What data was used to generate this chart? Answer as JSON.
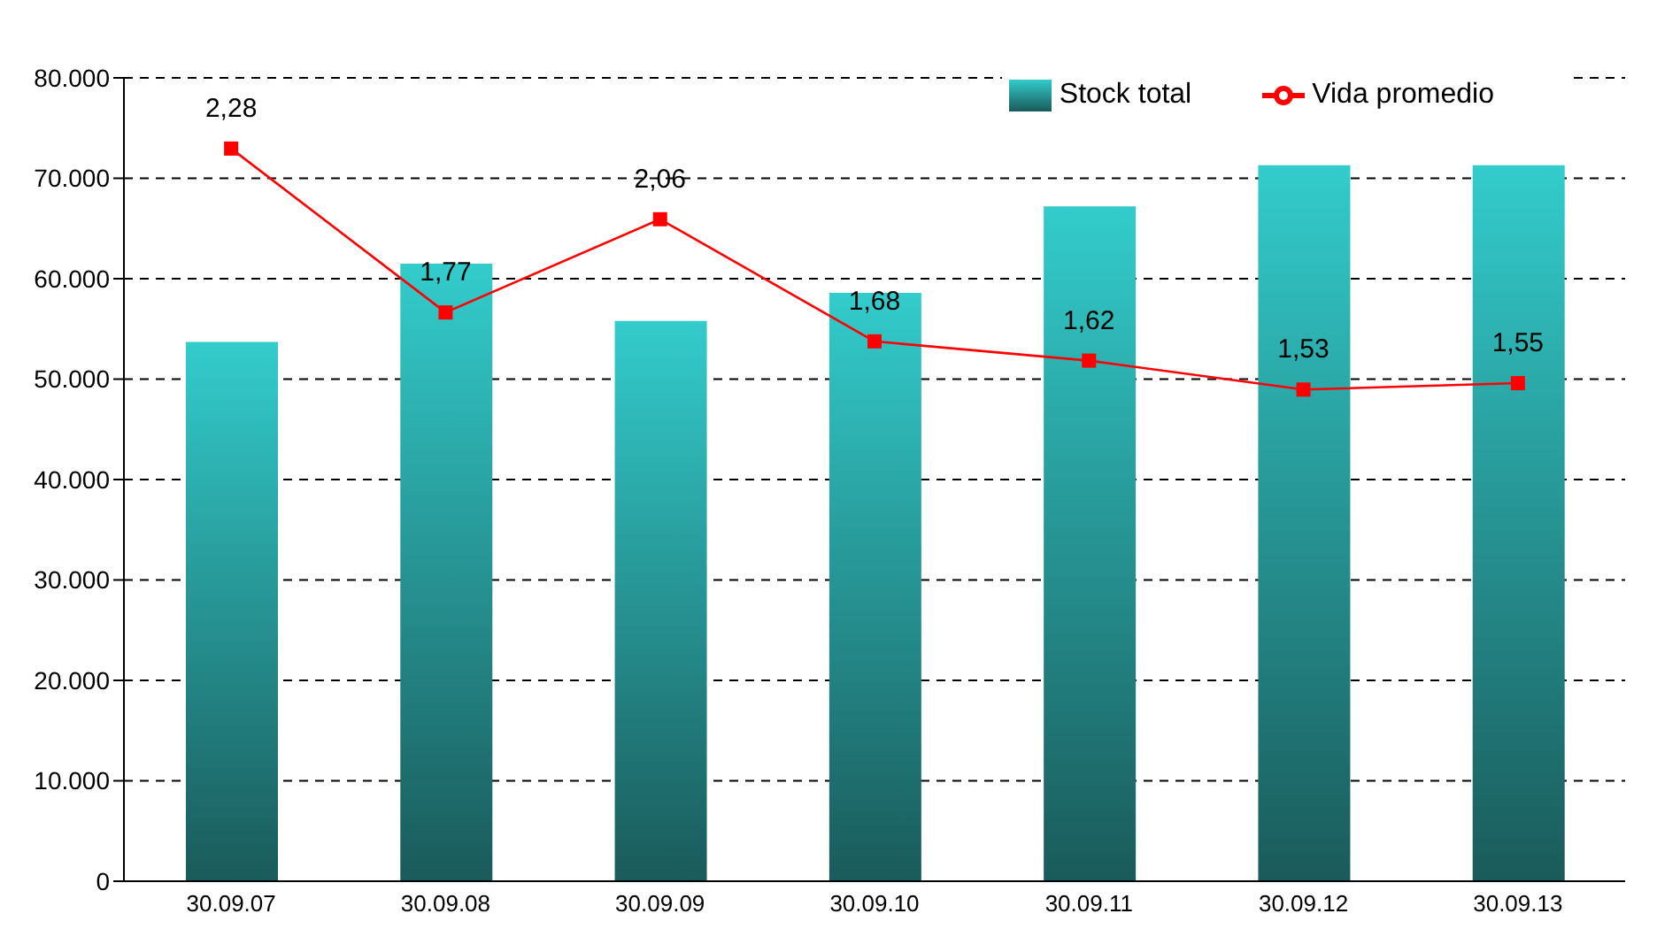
{
  "chart_data": {
    "type": "bar",
    "categories": [
      "30.09.07",
      "30.09.08",
      "30.09.09",
      "30.09.10",
      "30.09.11",
      "30.09.12",
      "30.09.13"
    ],
    "series": [
      {
        "name": "Stock total",
        "color": "#33cccc",
        "values": [
          53700,
          61500,
          55800,
          58600,
          67200,
          71300,
          71300
        ]
      },
      {
        "name": "Vida promedio",
        "type": "line",
        "axis": "y2",
        "color": "#ff0000",
        "marker": "square",
        "values": [
          2.28,
          1.77,
          2.06,
          1.68,
          1.62,
          1.53,
          1.55
        ],
        "value_labels": [
          "2,28",
          "1,77",
          "2,06",
          "1,68",
          "1,62",
          "1,53",
          "1,55"
        ]
      }
    ],
    "ylim": [
      0,
      80000
    ],
    "yticks": [
      0,
      {
        "value": 10000,
        "label": "10.000"
      },
      {
        "value": 20000,
        "label": "20.000"
      },
      {
        "value": 30000,
        "label": "30.000"
      },
      {
        "value": 40000,
        "label": "40.000"
      },
      {
        "value": 50000,
        "label": "50.000"
      },
      {
        "value": 60000,
        "label": "60.000"
      },
      {
        "value": 70000,
        "label": "70.000"
      },
      {
        "value": 80000,
        "label": "80.000"
      }
    ],
    "y2lim": [
      0,
      2.5
    ],
    "grid": "y",
    "line_style": "solid",
    "legend": "top right"
  }
}
